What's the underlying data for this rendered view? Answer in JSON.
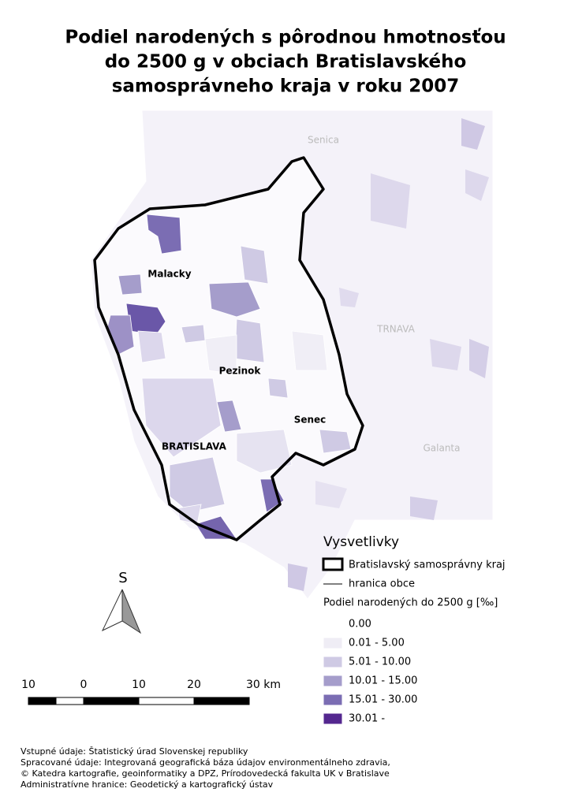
{
  "title": [
    "Podiel narodených s pôrodnou hmotnosťou",
    "do 2500 g v obciach Bratislavského",
    "samosprávneho kraja v roku 2007"
  ],
  "places": [
    "Senica",
    "TRNAVA",
    "Galanta",
    "Malacky",
    "Pezinok",
    "Senec",
    "BRATISLAVA"
  ],
  "legend": {
    "title": "Vysvetlivky",
    "boundary": "Bratislavský samosprávny kraj",
    "border": "hranica obce",
    "subtitle": "Podiel narodených do 2500 g [‰]",
    "classes": [
      {
        "label": "0.00",
        "color": "#ffffff"
      },
      {
        "label": "0.01 - 5.00",
        "color": "#efedf5"
      },
      {
        "label": "5.01 - 10.00",
        "color": "#cfcae4"
      },
      {
        "label": "10.01 - 15.00",
        "color": "#a59dcb"
      },
      {
        "label": "15.01 - 30.00",
        "color": "#7b6db3"
      },
      {
        "label": "30.01 -",
        "color": "#54278f"
      }
    ]
  },
  "north": "S",
  "scale": [
    "10",
    "0",
    "10",
    "20",
    "30 km"
  ],
  "credits": [
    "Vstupné údaje: Štatistický úrad Slovenskej republiky",
    "Spracované údaje: Integrovaná geografická báza údajov environmentálneho zdravia,",
    "© Katedra kartografie, geoinformatiky a DPZ, Prírodovedecká fakulta UK v Bratislave",
    "Administratívne hranice: Geodetický a kartografický ústav"
  ]
}
